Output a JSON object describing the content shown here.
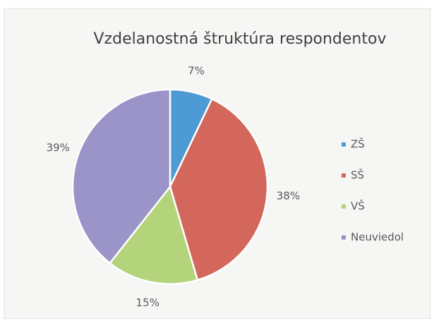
{
  "chart_data": {
    "type": "pie",
    "title": "Vzdelanostná štruktúra respondentov",
    "categories": [
      "ZŠ",
      "SŠ",
      "VŠ",
      "Neuviedol"
    ],
    "values": [
      7,
      38,
      15,
      39
    ],
    "value_labels": [
      "7%",
      "38%",
      "15%",
      "39%"
    ],
    "colors": [
      "#4e9ad4",
      "#d4675b",
      "#b3d47a",
      "#9a94c8"
    ],
    "legend": "right"
  }
}
